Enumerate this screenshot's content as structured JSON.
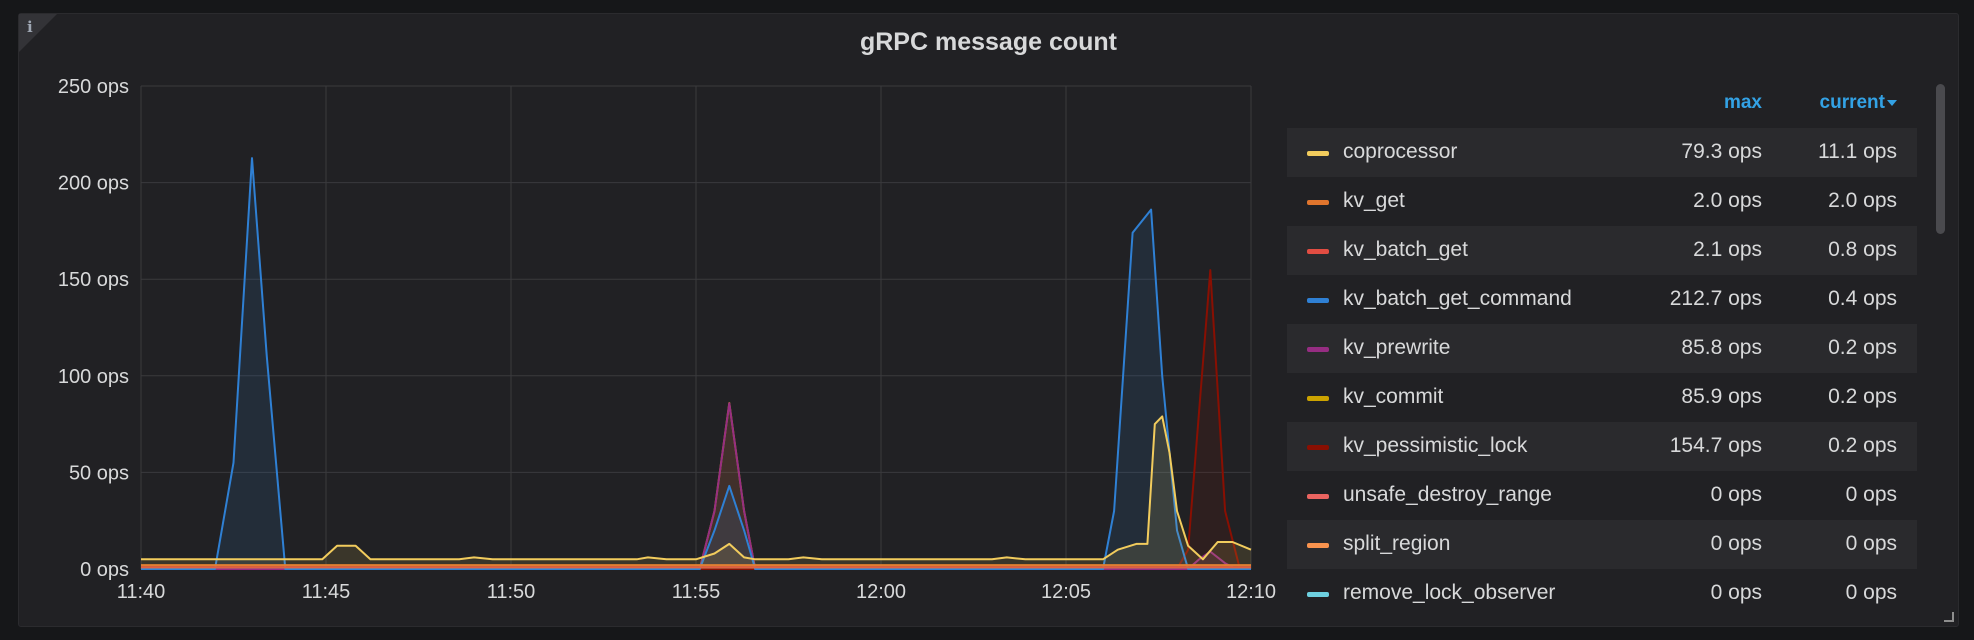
{
  "panel": {
    "title": "gRPC message count",
    "info_glyph": "i"
  },
  "legend": {
    "col_max": "max",
    "col_current": "current"
  },
  "chart_data": {
    "type": "line",
    "fill": "area",
    "title": "gRPC message count",
    "y_unit": "ops",
    "ylim": [
      0,
      250
    ],
    "y_ticks": [
      "0 ops",
      "50 ops",
      "100 ops",
      "150 ops",
      "200 ops",
      "250 ops"
    ],
    "x_ticks": [
      "11:40",
      "11:45",
      "11:50",
      "11:55",
      "12:00",
      "12:05",
      "12:10"
    ],
    "x_range_min": [
      0,
      30
    ],
    "grid": true,
    "series": [
      {
        "name": "coprocessor",
        "color": "#f2cc5d",
        "max": "79.3 ops",
        "current": "11.1 ops",
        "points": [
          [
            0,
            5
          ],
          [
            4.9,
            5
          ],
          [
            5.3,
            12
          ],
          [
            5.8,
            12
          ],
          [
            6.2,
            5
          ],
          [
            8.6,
            5
          ],
          [
            9.0,
            6
          ],
          [
            9.5,
            5
          ],
          [
            13.4,
            5
          ],
          [
            13.7,
            6
          ],
          [
            14.2,
            5
          ],
          [
            15.0,
            5
          ],
          [
            15.5,
            8
          ],
          [
            15.9,
            13
          ],
          [
            16.3,
            6
          ],
          [
            16.6,
            5
          ],
          [
            17.5,
            5
          ],
          [
            17.9,
            6
          ],
          [
            18.4,
            5
          ],
          [
            23.0,
            5
          ],
          [
            23.4,
            6
          ],
          [
            23.9,
            5
          ],
          [
            26.0,
            5
          ],
          [
            26.4,
            10
          ],
          [
            26.9,
            13
          ],
          [
            27.2,
            13
          ],
          [
            27.4,
            75
          ],
          [
            27.6,
            79
          ],
          [
            27.8,
            60
          ],
          [
            28.0,
            30
          ],
          [
            28.3,
            12
          ],
          [
            28.7,
            5
          ],
          [
            29.1,
            14
          ],
          [
            29.5,
            14
          ],
          [
            30,
            10
          ]
        ]
      },
      {
        "name": "kv_get",
        "color": "#e0752d",
        "max": "2.0 ops",
        "current": "2.0 ops",
        "points": [
          [
            0,
            2
          ],
          [
            30,
            2
          ]
        ]
      },
      {
        "name": "kv_batch_get",
        "color": "#e24d42",
        "max": "2.1 ops",
        "current": "0.8 ops",
        "points": [
          [
            0,
            1
          ],
          [
            30,
            1
          ]
        ]
      },
      {
        "name": "kv_batch_get_command",
        "color": "#2f80d4",
        "max": "212.7 ops",
        "current": "0.4 ops",
        "points": [
          [
            0,
            0
          ],
          [
            2.0,
            0
          ],
          [
            2.5,
            55
          ],
          [
            3.0,
            212.7
          ],
          [
            3.4,
            110
          ],
          [
            3.9,
            0
          ],
          [
            15.1,
            0
          ],
          [
            15.5,
            20
          ],
          [
            15.9,
            43
          ],
          [
            16.3,
            20
          ],
          [
            16.6,
            0
          ],
          [
            26.0,
            0
          ],
          [
            26.3,
            30
          ],
          [
            26.8,
            174
          ],
          [
            27.3,
            186
          ],
          [
            27.6,
            100
          ],
          [
            28.0,
            20
          ],
          [
            28.3,
            0
          ],
          [
            30,
            0
          ]
        ]
      },
      {
        "name": "kv_prewrite",
        "color": "#962d82",
        "max": "85.8 ops",
        "current": "0.2 ops",
        "points": [
          [
            0,
            0
          ],
          [
            15.1,
            0
          ],
          [
            15.5,
            30
          ],
          [
            15.9,
            85.8
          ],
          [
            16.3,
            30
          ],
          [
            16.6,
            0
          ],
          [
            28.3,
            0
          ],
          [
            28.6,
            5
          ],
          [
            28.9,
            9
          ],
          [
            29.3,
            3
          ],
          [
            29.6,
            0
          ],
          [
            30,
            0
          ]
        ]
      },
      {
        "name": "kv_commit",
        "color": "#cca300",
        "max": "85.9 ops",
        "current": "0.2 ops",
        "points": [
          [
            0,
            0
          ],
          [
            15.1,
            0
          ],
          [
            15.5,
            30
          ],
          [
            15.9,
            85.9
          ],
          [
            16.3,
            30
          ],
          [
            16.6,
            0
          ],
          [
            30,
            0
          ]
        ]
      },
      {
        "name": "kv_pessimistic_lock",
        "color": "#890f02",
        "max": "154.7 ops",
        "current": "0.2 ops",
        "points": [
          [
            0,
            0
          ],
          [
            28.0,
            0
          ],
          [
            28.3,
            10
          ],
          [
            28.9,
            154.7
          ],
          [
            29.3,
            30
          ],
          [
            29.7,
            0
          ],
          [
            30,
            0
          ]
        ]
      },
      {
        "name": "unsafe_destroy_range",
        "color": "#ea6460",
        "max": "0 ops",
        "current": "0 ops",
        "points": [
          [
            0,
            0
          ],
          [
            30,
            0
          ]
        ]
      },
      {
        "name": "split_region",
        "color": "#f9934e",
        "max": "0 ops",
        "current": "0 ops",
        "points": [
          [
            0,
            0
          ],
          [
            30,
            0
          ]
        ]
      },
      {
        "name": "remove_lock_observer",
        "color": "#6ed0e0",
        "max": "0 ops",
        "current": "0 ops",
        "points": [
          [
            0,
            0
          ],
          [
            30,
            0
          ]
        ]
      }
    ]
  }
}
